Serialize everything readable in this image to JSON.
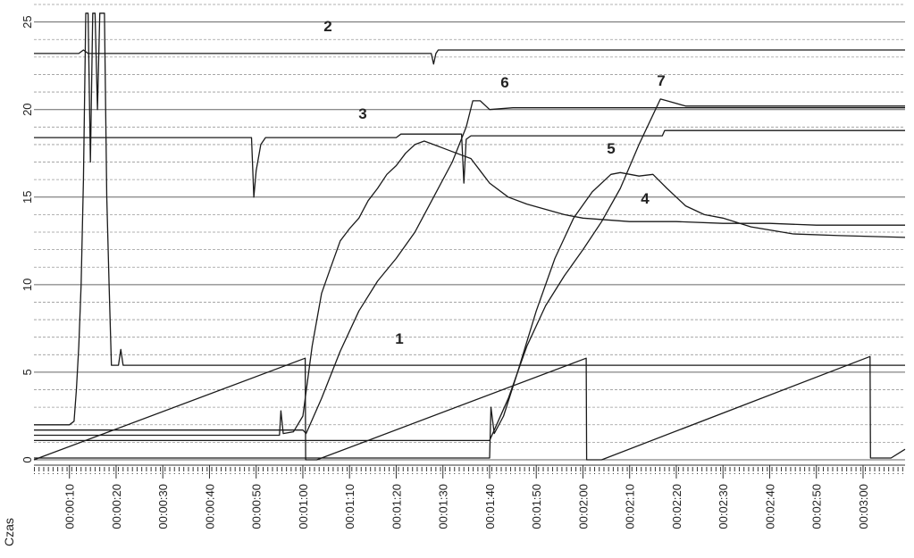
{
  "chart_data": {
    "type": "line",
    "x_label": "Czas",
    "xlim": [
      2.4,
      189
    ],
    "xticks": [
      {
        "value": 10,
        "label": "00:00:10"
      },
      {
        "value": 20,
        "label": "00:00:20"
      },
      {
        "value": 30,
        "label": "00:00:30"
      },
      {
        "value": 40,
        "label": "00:00:40"
      },
      {
        "value": 50,
        "label": "00:00:50"
      },
      {
        "value": 60,
        "label": "00:01:00"
      },
      {
        "value": 70,
        "label": "00:01:10"
      },
      {
        "value": 80,
        "label": "00:01:20"
      },
      {
        "value": 90,
        "label": "00:01:30"
      },
      {
        "value": 100,
        "label": "00:01:40"
      },
      {
        "value": 110,
        "label": "00:01:50"
      },
      {
        "value": 120,
        "label": "00:02:00"
      },
      {
        "value": 130,
        "label": "00:02:10"
      },
      {
        "value": 140,
        "label": "00:02:20"
      },
      {
        "value": 150,
        "label": "00:02:30"
      },
      {
        "value": 160,
        "label": "00:02:40"
      },
      {
        "value": 170,
        "label": "00:02:50"
      },
      {
        "value": 180,
        "label": "00:03:00"
      }
    ],
    "ylim": [
      0,
      26
    ],
    "yticks": [
      0,
      5,
      10,
      15,
      20,
      25
    ],
    "minor_yticks": [
      1,
      2,
      3,
      4,
      6,
      7,
      8,
      9,
      11,
      12,
      13,
      14,
      16,
      17,
      18,
      19,
      21,
      22,
      23,
      24,
      26
    ],
    "grid": true,
    "series": [
      {
        "name": "1",
        "color": "#1a1a1a",
        "x": [
          2.4,
          10,
          11,
          11.5,
          12,
          12.5,
          13,
          13.5,
          14,
          14.5,
          15,
          15.5,
          16,
          16.5,
          17,
          17.5,
          18,
          18.5,
          19,
          20.5,
          21,
          21.5,
          22,
          60,
          100,
          150,
          189
        ],
        "values": [
          2,
          2,
          2.2,
          4,
          6.5,
          10,
          16,
          25.5,
          25.5,
          17,
          25.5,
          25.5,
          20,
          25.5,
          25.5,
          25.5,
          15,
          10,
          5.4,
          5.4,
          6.3,
          5.4,
          5.4,
          5.4,
          5.4,
          5.4,
          5.4
        ]
      },
      {
        "name": "2",
        "color": "#1a1a1a",
        "x": [
          2.4,
          12,
          13,
          14,
          50,
          87.5,
          88,
          88.5,
          89,
          189
        ],
        "values": [
          23.2,
          23.2,
          23.4,
          23.2,
          23.2,
          23.2,
          22.6,
          23.2,
          23.4,
          23.4
        ]
      },
      {
        "name": "3",
        "color": "#1a1a1a",
        "x": [
          2.4,
          20,
          49,
          49.5,
          50,
          51,
          52,
          80,
          81,
          94,
          94.5,
          95,
          96,
          137,
          137.5,
          189
        ],
        "values": [
          18.4,
          18.4,
          18.4,
          15,
          16.5,
          18,
          18.4,
          18.4,
          18.6,
          18.6,
          15.8,
          18.3,
          18.5,
          18.5,
          18.8,
          18.8
        ]
      },
      {
        "name": "4",
        "color": "#1a1a1a",
        "x": [
          2.4,
          55,
          55.3,
          55.8,
          58,
          60,
          62,
          64,
          66,
          68,
          70,
          72,
          74,
          76,
          78,
          80,
          82,
          84,
          86,
          88,
          90,
          92,
          94,
          96,
          98,
          100,
          104,
          108,
          112,
          116,
          120,
          130,
          140,
          150,
          160,
          170,
          189
        ],
        "values": [
          1.4,
          1.4,
          2.8,
          1.5,
          1.6,
          2.5,
          6.5,
          9.5,
          11,
          12.5,
          13.2,
          13.8,
          14.8,
          15.5,
          16.3,
          16.8,
          17.5,
          18,
          18.2,
          18,
          17.8,
          17.6,
          17.4,
          17.2,
          16.5,
          15.8,
          15,
          14.6,
          14.3,
          14,
          13.8,
          13.6,
          13.6,
          13.5,
          13.5,
          13.4,
          13.4
        ]
      },
      {
        "name": "5",
        "color": "#1a1a1a",
        "x": [
          2.4,
          100,
          100.3,
          101,
          103,
          106,
          110,
          114,
          118,
          122,
          126,
          128,
          132,
          135,
          138,
          142,
          146,
          150,
          156,
          165,
          175,
          189
        ],
        "values": [
          0.1,
          0.1,
          3,
          1.5,
          2.5,
          5,
          8.5,
          11.5,
          13.8,
          15.3,
          16.3,
          16.4,
          16.2,
          16.3,
          15.5,
          14.5,
          14,
          13.8,
          13.3,
          12.9,
          12.8,
          12.7
        ]
      },
      {
        "name": "6",
        "color": "#1a1a1a",
        "x": [
          2.4,
          60,
          60.7,
          64,
          68,
          72,
          76,
          80,
          84,
          88,
          92,
          95,
          96.4,
          98,
          100,
          105,
          189
        ],
        "values": [
          1.7,
          1.7,
          1.5,
          3.5,
          6.2,
          8.5,
          10.2,
          11.5,
          13,
          15,
          17,
          19,
          20.5,
          20.5,
          20,
          20.1,
          20.1
        ]
      },
      {
        "name": "7",
        "color": "#1a1a1a",
        "x": [
          2.4,
          100,
          101,
          104,
          108,
          112,
          116,
          120,
          124,
          128,
          132,
          136.6,
          138,
          142,
          189
        ],
        "values": [
          1.1,
          1.1,
          1.7,
          3.5,
          6.5,
          8.8,
          10.5,
          12,
          13.6,
          15.5,
          18,
          20.6,
          20.5,
          20.2,
          20.2
        ]
      },
      {
        "color": "#1a1a1a",
        "x": [
          2.4,
          60.5,
          60.6,
          63,
          120.7,
          120.8,
          124,
          181.5,
          181.6,
          186,
          189
        ],
        "values": [
          0,
          5.8,
          0,
          0,
          5.8,
          0,
          0,
          5.9,
          0.1,
          0.1,
          0.6
        ]
      }
    ]
  }
}
